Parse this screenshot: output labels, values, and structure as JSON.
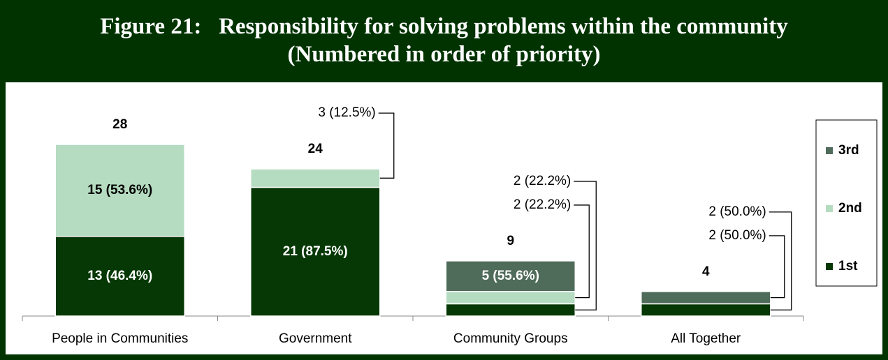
{
  "chart_data": {
    "type": "stacked_bar",
    "title": "Figure 21:   Responsibility for solving problems within the community",
    "subtitle": "(Numbered in order of priority)",
    "categories": [
      "People in Communities",
      "Government",
      "Community Groups",
      "All Together"
    ],
    "series": [
      {
        "name": "1st",
        "color": "#063806",
        "values": [
          13,
          21,
          2,
          2
        ],
        "value_labels": [
          "13 (46.4%)",
          "21 (87.5%)",
          "2 (22.2%)",
          "2 (50.0%)"
        ]
      },
      {
        "name": "2nd",
        "color": "#b5dcc0",
        "values": [
          15,
          3,
          2,
          0
        ],
        "value_labels": [
          "15 (53.6%)",
          "3 (12.5%)",
          "2 (22.2%)",
          null
        ]
      },
      {
        "name": "3rd",
        "color": "#4f6b5a",
        "values": [
          0,
          0,
          5,
          2
        ],
        "value_labels": [
          null,
          null,
          "5 (55.6%)",
          "2 (50.0%)"
        ]
      }
    ],
    "totals": [
      28,
      24,
      9,
      4
    ],
    "ylim": [
      0,
      28
    ],
    "legend": "right"
  }
}
